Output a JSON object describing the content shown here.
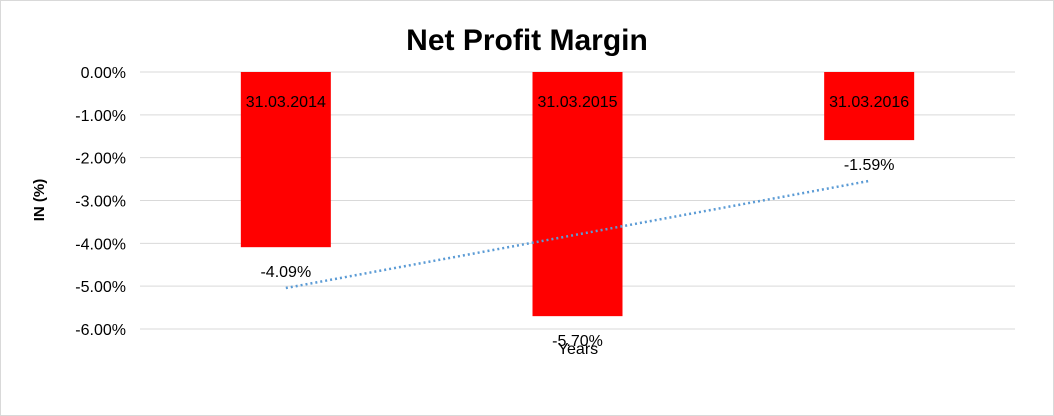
{
  "chart_data": {
    "type": "bar",
    "title": "Net Profit Margin",
    "xlabel": "Years",
    "ylabel": "IN (%)",
    "categories": [
      "31.03.2014",
      "31.03.2015",
      "31.03.2016"
    ],
    "values": [
      -4.09,
      -5.7,
      -1.59
    ],
    "data_labels": [
      "-4.09%",
      "-5.70%",
      "-1.59%"
    ],
    "ylim": [
      -6,
      0
    ],
    "yticks": [
      0,
      -1,
      -2,
      -3,
      -4,
      -5,
      -6
    ],
    "ytick_labels": [
      "0.00%",
      "-1.00%",
      "-2.00%",
      "-3.00%",
      "-4.00%",
      "-5.00%",
      "-6.00%"
    ],
    "bar_color": "#ff0000",
    "trendline": {
      "type": "linear",
      "style": "dotted",
      "color": "#5b9bd5"
    },
    "grid": true,
    "legend": "none"
  }
}
